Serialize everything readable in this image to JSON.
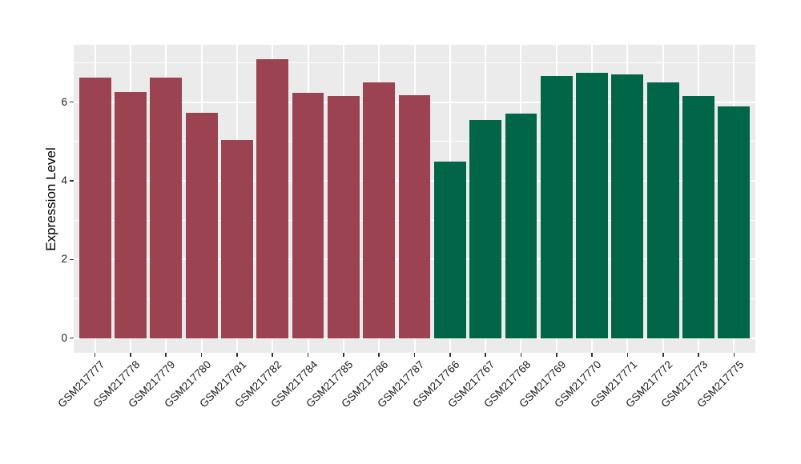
{
  "figure": {
    "background": "#FFFFFF"
  },
  "chart_data": {
    "type": "bar",
    "title": "",
    "xlabel": "",
    "ylabel": "Expression Level",
    "categories": [
      "GSM217777",
      "GSM217778",
      "GSM217779",
      "GSM217780",
      "GSM217781",
      "GSM217782",
      "GSM217784",
      "GSM217785",
      "GSM217786",
      "GSM217787",
      "GSM217766",
      "GSM217767",
      "GSM217768",
      "GSM217769",
      "GSM217770",
      "GSM217771",
      "GSM217772",
      "GSM217773",
      "GSM217775"
    ],
    "values": [
      6.62,
      6.25,
      6.62,
      5.72,
      5.03,
      7.1,
      6.23,
      6.15,
      6.5,
      6.18,
      4.48,
      5.54,
      5.7,
      6.66,
      6.74,
      6.71,
      6.51,
      6.15,
      5.9
    ],
    "bar_group_index": [
      0,
      0,
      0,
      0,
      0,
      0,
      0,
      0,
      0,
      0,
      1,
      1,
      1,
      1,
      1,
      1,
      1,
      1,
      1
    ],
    "group_colors": [
      "#9B4350",
      "#006647"
    ],
    "ylim": [
      0,
      7.46
    ],
    "yticks": [
      0,
      2,
      4,
      6
    ],
    "minor_yticks": [
      1,
      3,
      5,
      7
    ],
    "grid": true,
    "legend": "none",
    "panel_background": "#EBEBEB",
    "grid_color": "#FFFFFF",
    "tick_color": "#333333",
    "text_color": "#1A1A1A",
    "bar_width_fraction": 0.9
  }
}
